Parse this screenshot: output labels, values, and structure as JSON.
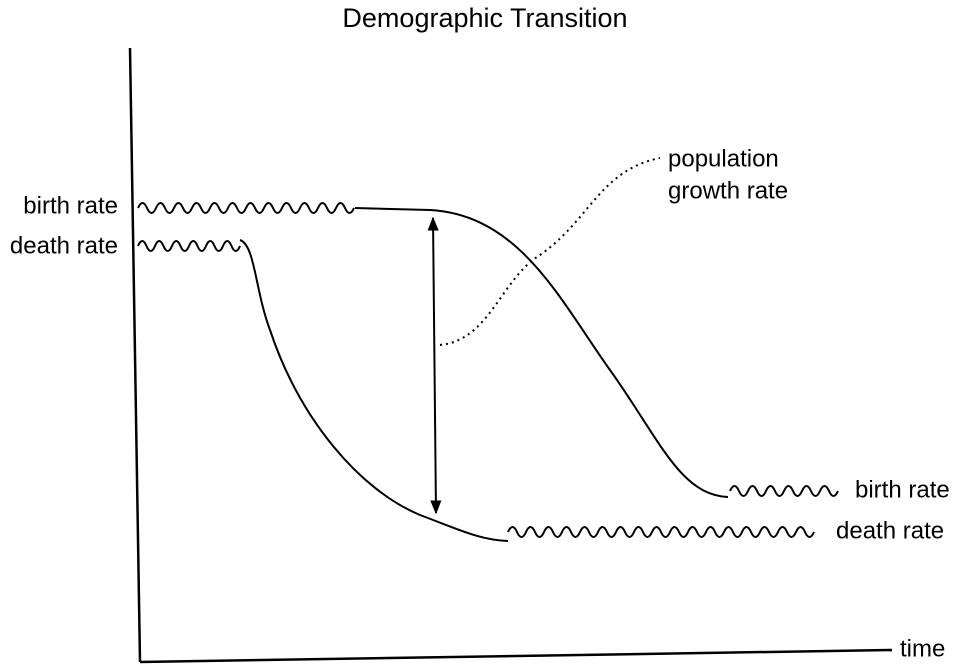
{
  "title": "Demographic Transition",
  "labels": {
    "birth_rate_start": "birth rate",
    "death_rate_start": "death rate",
    "population_growth_rate": [
      "population",
      "growth rate"
    ],
    "birth_rate_end": "birth rate",
    "death_rate_end": "death rate",
    "time_axis": "time"
  }
}
